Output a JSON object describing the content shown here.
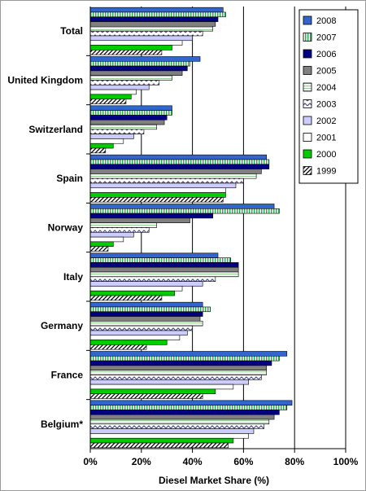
{
  "chart_data": {
    "type": "bar",
    "orientation": "horizontal",
    "title": "",
    "xlabel": "Diesel Market Share (%)",
    "ylabel": "",
    "xlim": [
      0,
      100
    ],
    "x_ticks": [
      "0%",
      "20%",
      "40%",
      "60%",
      "80%",
      "100%"
    ],
    "grid": "vertical major gridlines",
    "legend_position": "right",
    "categories": [
      "Total",
      "United Kingdom",
      "Switzerland",
      "Spain",
      "Norway",
      "Italy",
      "Germany",
      "France",
      "Belgium*"
    ],
    "series": [
      {
        "name": "2008",
        "color": "#3366cc",
        "pattern": "solid",
        "values": [
          52,
          43,
          32,
          69,
          72,
          50,
          44,
          77,
          79
        ]
      },
      {
        "name": "2007",
        "color": "#33cc66",
        "pattern": "vertical-stripes",
        "values": [
          53,
          39,
          32,
          70,
          74,
          55,
          47,
          74,
          77
        ]
      },
      {
        "name": "2006",
        "color": "#000080",
        "pattern": "solid",
        "values": [
          50,
          38,
          30,
          70,
          48,
          58,
          44,
          71,
          74
        ]
      },
      {
        "name": "2005",
        "color": "#808080",
        "pattern": "solid",
        "values": [
          49,
          36,
          29,
          67,
          39,
          58,
          43,
          69,
          72
        ]
      },
      {
        "name": "2004",
        "color": "#ccffcc",
        "pattern": "horizontal-stripes",
        "values": [
          48,
          32,
          26,
          65,
          26,
          58,
          44,
          69,
          70
        ]
      },
      {
        "name": "2003",
        "color": "#6666aa",
        "pattern": "zigzag",
        "values": [
          44,
          27,
          21,
          60,
          23,
          49,
          40,
          67,
          68
        ]
      },
      {
        "name": "2002",
        "color": "#ccccff",
        "pattern": "light-solid",
        "values": [
          40,
          23,
          17,
          57,
          17,
          44,
          38,
          62,
          64
        ]
      },
      {
        "name": "2001",
        "color": "#ffffff",
        "pattern": "white-outlined",
        "values": [
          36,
          18,
          13,
          53,
          13,
          36,
          35,
          56,
          62
        ]
      },
      {
        "name": "2000",
        "color": "#00cc00",
        "pattern": "solid",
        "values": [
          32,
          16,
          9,
          53,
          9,
          33,
          30,
          49,
          56
        ]
      },
      {
        "name": "1999",
        "color": "#000000",
        "pattern": "diagonal-hatch",
        "values": [
          28,
          14,
          6,
          52,
          7,
          28,
          22,
          44,
          54
        ]
      }
    ]
  }
}
